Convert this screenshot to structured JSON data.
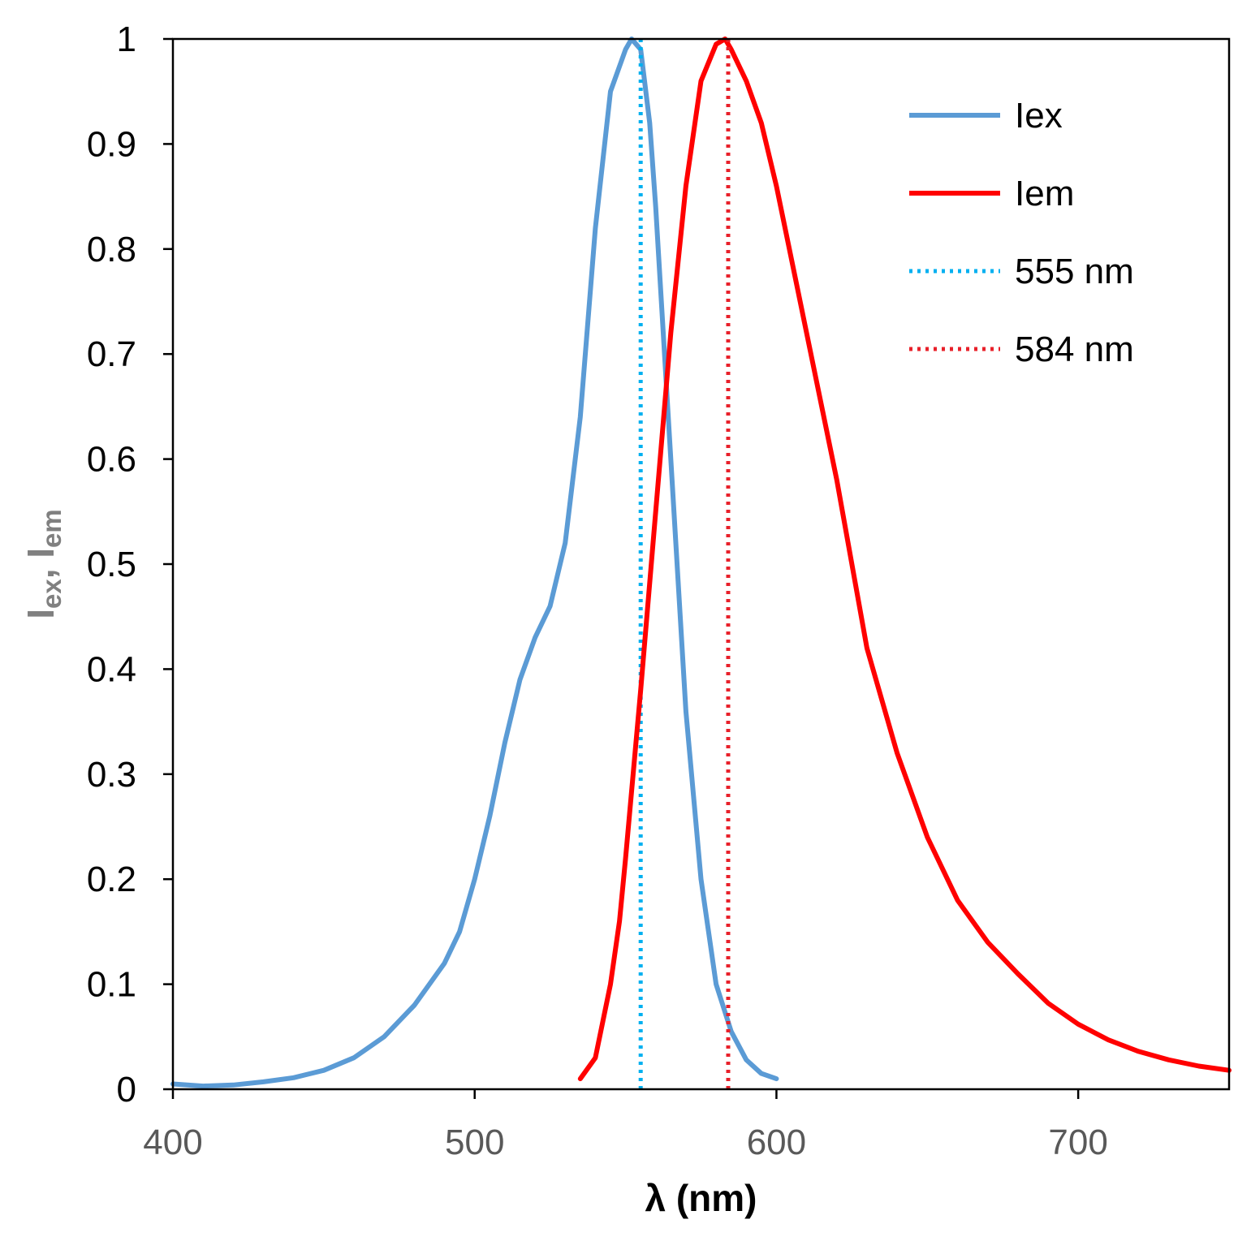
{
  "chart_data": {
    "type": "line",
    "xlabel": "λ (nm)",
    "ylabel": {
      "main1": "I",
      "sub1": "ex",
      "sep": ", ",
      "main2": "I",
      "sub2": "em"
    },
    "xlim": [
      400,
      750
    ],
    "ylim": [
      0,
      1
    ],
    "xticks": [
      400,
      500,
      600,
      700
    ],
    "yticks": [
      0,
      0.1,
      0.2,
      0.3,
      0.4,
      0.5,
      0.6,
      0.7,
      0.8,
      0.9,
      1
    ],
    "grid": false,
    "legend_position": "top-right",
    "series": [
      {
        "name": "Iex",
        "style": "solid",
        "color": "#5b9bd5",
        "x": [
          400,
          410,
          420,
          430,
          440,
          450,
          460,
          470,
          480,
          490,
          495,
          500,
          505,
          510,
          515,
          520,
          525,
          530,
          535,
          540,
          545,
          550,
          552,
          555,
          558,
          560,
          565,
          570,
          575,
          580,
          585,
          590,
          595,
          600
        ],
        "y": [
          0.005,
          0.003,
          0.004,
          0.007,
          0.011,
          0.018,
          0.03,
          0.05,
          0.08,
          0.12,
          0.15,
          0.2,
          0.26,
          0.33,
          0.39,
          0.43,
          0.46,
          0.52,
          0.64,
          0.82,
          0.95,
          0.99,
          1.0,
          0.99,
          0.92,
          0.84,
          0.6,
          0.36,
          0.2,
          0.1,
          0.055,
          0.028,
          0.015,
          0.01
        ]
      },
      {
        "name": "Iem",
        "style": "solid",
        "color": "#ff0000",
        "x": [
          535,
          540,
          545,
          548,
          550,
          555,
          560,
          565,
          570,
          575,
          580,
          583,
          585,
          590,
          595,
          600,
          605,
          610,
          620,
          630,
          640,
          650,
          660,
          670,
          680,
          690,
          700,
          710,
          720,
          730,
          740,
          750
        ],
        "y": [
          0.01,
          0.03,
          0.1,
          0.16,
          0.22,
          0.38,
          0.55,
          0.72,
          0.86,
          0.96,
          0.995,
          1.0,
          0.99,
          0.96,
          0.92,
          0.86,
          0.79,
          0.72,
          0.58,
          0.42,
          0.32,
          0.24,
          0.18,
          0.14,
          0.11,
          0.082,
          0.062,
          0.047,
          0.036,
          0.028,
          0.022,
          0.018
        ]
      },
      {
        "name": "555 nm",
        "style": "dotted",
        "color": "#00b0f0",
        "x": [
          555,
          555
        ],
        "y": [
          0,
          1
        ]
      },
      {
        "name": "584 nm",
        "style": "dotted",
        "color": "#e8202a",
        "x": [
          584,
          584
        ],
        "y": [
          0,
          1
        ]
      }
    ]
  }
}
